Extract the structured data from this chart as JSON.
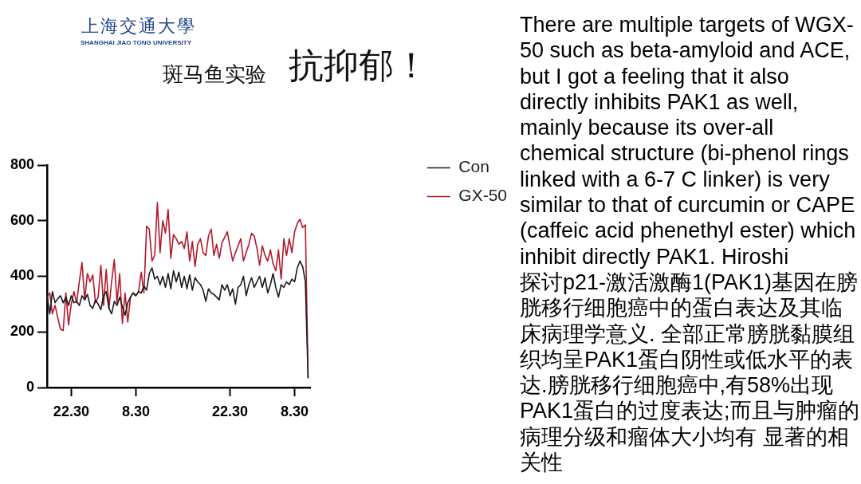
{
  "chart_data": {
    "type": "line",
    "title": "抗抑郁！",
    "subtitle": "斑马鱼实验",
    "annotations": [
      "上海交通大學",
      "SHANGHAI JIAO TONG UNIVERSITY",
      "There are multiple targets of WGX-50 such as beta-amyloid and ACE, but I got a feeling that it also directly inhibits PAK1 as well, mainly because its over-all chemical structure (bi-phenol rings linked with a 6-7 C linker) is very similar to that of curcumin or CAPE (caffeic acid phenethyl ester) which inhibit directly PAK1.   Hiroshi",
      "探讨p21-激活激酶1(PAK1)基因在膀胱移行细胞癌中的蛋白表达及其临床病理学意义. 全部正常膀胱黏膜组织均呈PAK1蛋白阴性或低水平的表达.膀胱移行细胞癌中,有58%出现PAK1蛋白的过度表达;而且与肿瘤的病理分级和瘤体大小均有 显著的相关性"
    ],
    "categories": [
      null,
      null,
      null,
      null,
      null,
      null,
      null,
      null,
      null,
      "22.30",
      null,
      null,
      null,
      null,
      null,
      null,
      null,
      null,
      null,
      null,
      null,
      null,
      null,
      null,
      null,
      null,
      null,
      null,
      null,
      null,
      null,
      null,
      null,
      "8.30",
      null,
      null,
      null,
      null,
      null,
      null,
      null,
      null,
      null,
      null,
      null,
      null,
      null,
      null,
      null,
      null,
      null,
      null,
      null,
      null,
      null,
      null,
      null,
      null,
      null,
      null,
      null,
      null,
      null,
      null,
      null,
      null,
      null,
      null,
      "22.30",
      null,
      null,
      null,
      null,
      null,
      null,
      null,
      null,
      null,
      null,
      null,
      null,
      null,
      null,
      null,
      null,
      null,
      null,
      null,
      null,
      null,
      null,
      null,
      "8.30",
      null,
      null,
      null,
      null,
      null,
      null
    ],
    "ylim": [
      0,
      800
    ],
    "yticks": [
      0,
      200,
      400,
      600,
      800
    ],
    "grid": false,
    "legend": "top right",
    "marker": "none",
    "series": [
      {
        "name": "Con",
        "color": "#1a1a1a",
        "values": [
          330,
          265,
          345,
          305,
          320,
          330,
          305,
          325,
          295,
          330,
          305,
          310,
          295,
          330,
          315,
          335,
          295,
          285,
          315,
          300,
          280,
          330,
          345,
          285,
          265,
          310,
          295,
          325,
          290,
          260,
          305,
          325,
          340,
          330,
          345,
          340,
          365,
          350,
          410,
          430,
          390,
          400,
          370,
          400,
          360,
          410,
          355,
          420,
          380,
          415,
          360,
          400,
          355,
          405,
          350,
          395,
          380,
          370,
          350,
          310,
          355,
          340,
          335,
          325,
          315,
          370,
          350,
          370,
          330,
          355,
          300,
          360,
          370,
          400,
          330,
          370,
          395,
          360,
          380,
          400,
          360,
          395,
          340,
          370,
          410,
          360,
          325,
          370,
          360,
          380,
          370,
          390,
          380,
          430,
          455,
          435,
          380,
          35,
          null
        ]
      },
      {
        "name": "GX-50",
        "color": "#b3182c",
        "values": [
          325,
          340,
          265,
          295,
          250,
          210,
          205,
          340,
          225,
          300,
          345,
          305,
          380,
          450,
          315,
          410,
          380,
          405,
          305,
          325,
          440,
          295,
          425,
          285,
          380,
          460,
          305,
          410,
          230,
          340,
          235,
          325,
          340,
          330,
          345,
          415,
          340,
          580,
          570,
          455,
          475,
          665,
          485,
          600,
          555,
          640,
          465,
          550,
          535,
          515,
          525,
          500,
          560,
          455,
          525,
          435,
          515,
          535,
          485,
          475,
          545,
          570,
          475,
          515,
          465,
          520,
          540,
          560,
          505,
          455,
          485,
          510,
          535,
          455,
          485,
          515,
          555,
          545,
          500,
          440,
          510,
          475,
          455,
          495,
          445,
          420,
          495,
          390,
          535,
          475,
          535,
          485,
          560,
          590,
          605,
          575,
          585,
          35,
          null
        ]
      }
    ]
  }
}
